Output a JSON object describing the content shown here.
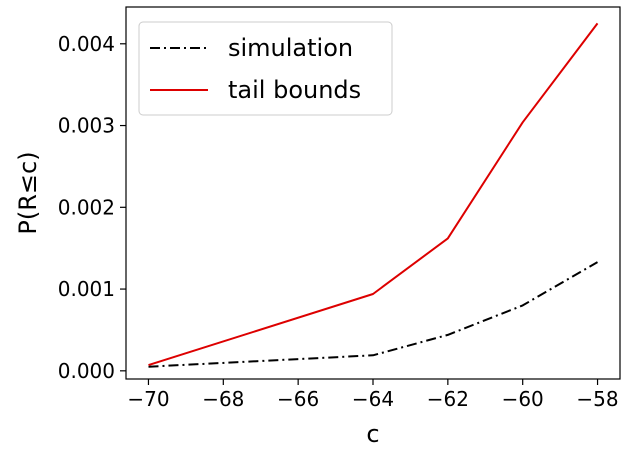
{
  "chart_data": {
    "type": "line",
    "title": "",
    "xlabel": "c",
    "ylabel": "P(R≤c)",
    "xlim": [
      -70.6,
      -57.4
    ],
    "ylim": [
      -0.0001,
      0.00445
    ],
    "xticks": [
      -70,
      -68,
      -66,
      -64,
      -62,
      -60,
      -58
    ],
    "xtick_labels": [
      "−70",
      "−68",
      "−66",
      "−64",
      "−62",
      "−60",
      "−58"
    ],
    "yticks": [
      0.0,
      0.001,
      0.002,
      0.003,
      0.004
    ],
    "ytick_labels": [
      "0.000",
      "0.001",
      "0.002",
      "0.003",
      "0.004"
    ],
    "grid": false,
    "legend_position": "top-left",
    "series": [
      {
        "name": "simulation",
        "color": "#000000",
        "style": "dashdot",
        "x": [
          -70,
          -64,
          -62,
          -60,
          -58
        ],
        "y": [
          5e-05,
          0.00019,
          0.00044,
          0.0008,
          0.00133
        ]
      },
      {
        "name": "tail bounds",
        "color": "#dd0000",
        "style": "solid",
        "x": [
          -70,
          -64,
          -62,
          -60,
          -58
        ],
        "y": [
          7e-05,
          0.00094,
          0.00162,
          0.00304,
          0.00425
        ]
      }
    ]
  }
}
